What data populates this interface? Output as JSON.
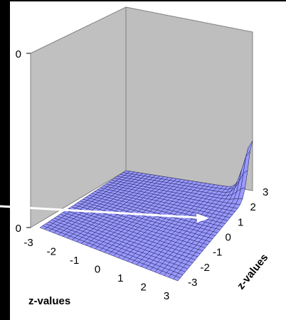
{
  "chart_data": {
    "type": "surface3d",
    "x_ticks": [
      "-3",
      "-2",
      "-1",
      "0",
      "1",
      "2",
      "3"
    ],
    "y_ticks": [
      "3",
      "2",
      "1",
      "0",
      "-1",
      "-2",
      "-3"
    ],
    "z_ticks": [
      "0",
      "0"
    ],
    "xlabel": "z-values",
    "ylabel": "z-values",
    "xlim": [
      -3,
      3
    ],
    "ylim": [
      -3,
      3
    ],
    "grid": true,
    "surface": {
      "description": "surface is flat at zero except for a narrow sharp peak near x=3, y=3",
      "peak": {
        "x": 3,
        "y": 3
      },
      "color": "#9999ff"
    },
    "walls_color": "#c0c0c0",
    "annotation_arrow_color": "#ffffff"
  }
}
